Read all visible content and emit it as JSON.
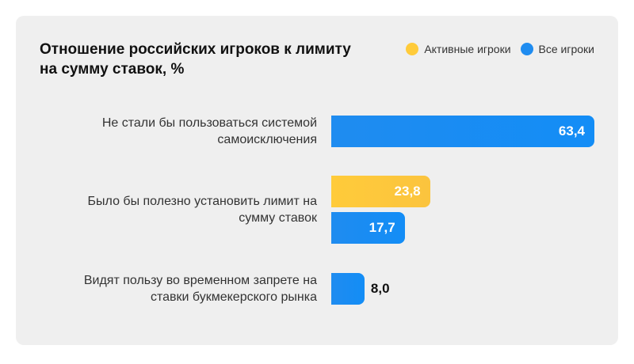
{
  "header": {
    "title_line1": "Отношение российских игроков к лимиту",
    "title_line2": "на сумму ставок, %"
  },
  "legend": [
    {
      "label": "Активные игроки",
      "color": "#ffcb3a"
    },
    {
      "label": "Все игроки",
      "color": "#1f8cf0"
    }
  ],
  "chart_data": {
    "type": "bar",
    "orientation": "horizontal",
    "title": "Отношение российских игроков к лимиту на сумму ставок, %",
    "categories": [
      [
        "Не стали бы пользоваться системой",
        "самоисключения"
      ],
      [
        "Было бы полезно установить лимит на",
        "сумму ставок"
      ],
      [
        "Видят пользу во временном запрете на",
        "ставки букмекерского рынка"
      ]
    ],
    "series": [
      {
        "name": "Активные игроки",
        "color": "#ffcb3a",
        "values": [
          null,
          23.8,
          null
        ],
        "labels": [
          null,
          "23,8",
          null
        ]
      },
      {
        "name": "Все игроки",
        "color": "#1f8cf0",
        "values": [
          63.4,
          17.7,
          8.0
        ],
        "labels": [
          "63,4",
          "17,7",
          "8,0"
        ]
      }
    ],
    "xlim": [
      0,
      63.4
    ],
    "grid": false,
    "legend_position": "top-right"
  }
}
